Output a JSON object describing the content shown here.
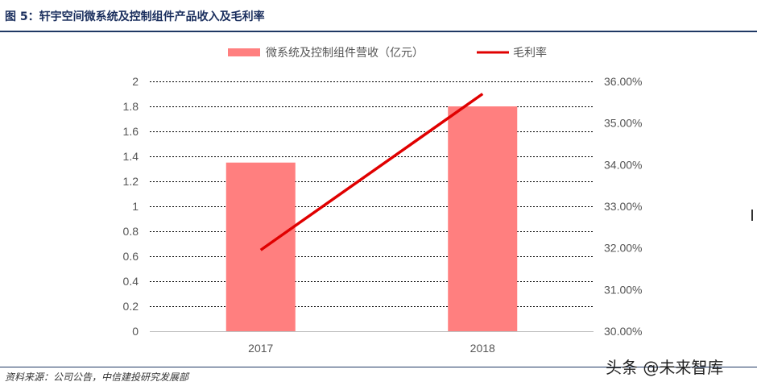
{
  "figure": {
    "title": "图 5：轩宇空间微系统及控制组件产品收入及毛利率",
    "source": "资料来源：公司公告，中信建投研究发展部",
    "watermark": "头条 @未来智库"
  },
  "chart_data": {
    "type": "bar",
    "categories": [
      "2017",
      "2018"
    ],
    "series": [
      {
        "name": "微系统及控制组件营收（亿元）",
        "kind": "bar",
        "axis": "left",
        "color": "#ff7f7f",
        "values": [
          1.35,
          1.8
        ]
      },
      {
        "name": "毛利率",
        "kind": "line",
        "axis": "right",
        "color": "#e00000",
        "values": [
          31.95,
          35.7
        ]
      }
    ],
    "y_left": {
      "min": 0,
      "max": 2,
      "ticks": [
        "0",
        "0.2",
        "0.4",
        "0.6",
        "0.8",
        "1",
        "1.2",
        "1.4",
        "1.6",
        "1.8",
        "2"
      ]
    },
    "y_right": {
      "min": 30,
      "max": 36,
      "ticks": [
        "30.00%",
        "31.00%",
        "32.00%",
        "33.00%",
        "34.00%",
        "35.00%",
        "36.00%"
      ]
    },
    "grid": true,
    "legend_position": "top"
  }
}
